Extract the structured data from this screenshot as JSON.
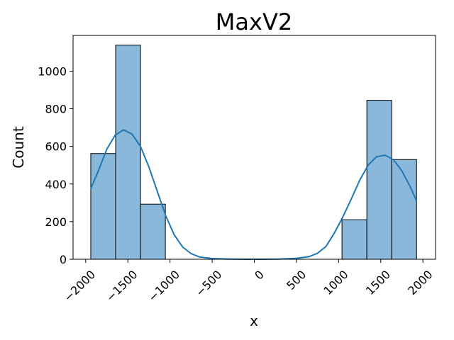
{
  "chart_data": {
    "type": "bar",
    "title": "MaxV2",
    "xlabel": "x",
    "ylabel": "Count",
    "xlim": [
      -2150,
      2150
    ],
    "ylim": [
      0,
      1190
    ],
    "x_ticks": [
      -2000,
      -1500,
      -1000,
      -500,
      0,
      500,
      1000,
      1500,
      2000
    ],
    "x_tick_labels": [
      "−2000",
      "−1500",
      "−1000",
      "−500",
      "0",
      "500",
      "1000",
      "1500",
      "2000"
    ],
    "y_ticks": [
      0,
      200,
      400,
      600,
      800,
      1000
    ],
    "y_tick_labels": [
      "0",
      "200",
      "400",
      "600",
      "800",
      "1000"
    ],
    "bins": [
      {
        "start": -1940,
        "end": -1645,
        "count": 562
      },
      {
        "start": -1645,
        "end": -1350,
        "count": 1138
      },
      {
        "start": -1350,
        "end": -1055,
        "count": 293
      },
      {
        "start": -1055,
        "end": -760,
        "count": 0
      },
      {
        "start": -760,
        "end": -465,
        "count": 0
      },
      {
        "start": -465,
        "end": -170,
        "count": 0
      },
      {
        "start": -170,
        "end": 125,
        "count": 0
      },
      {
        "start": 125,
        "end": 420,
        "count": 0
      },
      {
        "start": 420,
        "end": 715,
        "count": 0
      },
      {
        "start": 715,
        "end": 1010,
        "count": 0
      },
      {
        "start": 1040,
        "end": 1335,
        "count": 210
      },
      {
        "start": 1335,
        "end": 1630,
        "count": 845
      },
      {
        "start": 1630,
        "end": 1925,
        "count": 530
      }
    ],
    "kde": {
      "x": [
        -1940,
        -1850,
        -1750,
        -1650,
        -1550,
        -1450,
        -1350,
        -1250,
        -1150,
        -1050,
        -950,
        -850,
        -750,
        -650,
        -500,
        -300,
        -100,
        0,
        100,
        300,
        500,
        650,
        750,
        850,
        950,
        1050,
        1150,
        1250,
        1350,
        1450,
        1550,
        1650,
        1750,
        1850,
        1925
      ],
      "y": [
        375,
        470,
        585,
        660,
        688,
        665,
        600,
        490,
        360,
        230,
        130,
        65,
        30,
        12,
        4,
        1,
        0,
        0,
        0,
        1,
        5,
        14,
        32,
        68,
        140,
        225,
        320,
        420,
        500,
        545,
        553,
        530,
        470,
        385,
        310
      ]
    },
    "colors": {
      "bar_fill": "#8ab8da",
      "bar_edge": "#000000",
      "kde_line": "#1f77b4"
    },
    "grid": false,
    "legend": "none"
  }
}
